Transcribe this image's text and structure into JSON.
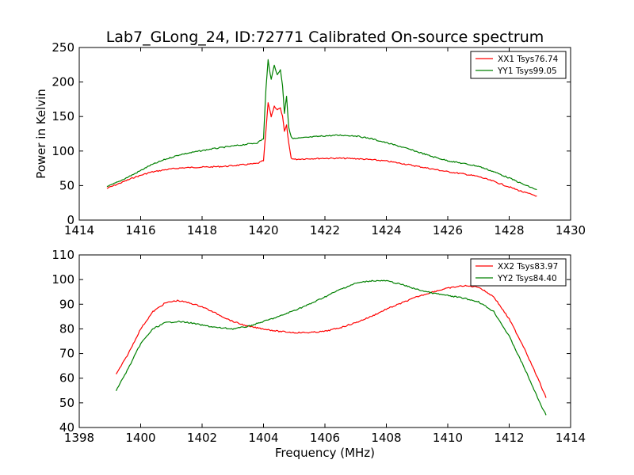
{
  "figure": {
    "title": "Lab7_GLong_24, ID:72771 Calibrated On-source spectrum",
    "xlabel": "Frequency (MHz)"
  },
  "chart_data": [
    {
      "type": "line",
      "title": "Lab7_GLong_24, ID:72771 Calibrated On-source spectrum",
      "xlabel": "",
      "ylabel": "Power in Kelvin",
      "xlim": [
        1414,
        1430
      ],
      "ylim": [
        0,
        250
      ],
      "xticks": [
        1414,
        1416,
        1418,
        1420,
        1422,
        1424,
        1426,
        1428,
        1430
      ],
      "yticks": [
        0,
        50,
        100,
        150,
        200,
        250
      ],
      "grid": false,
      "legend": "top-right",
      "series": [
        {
          "name": "XX1 Tsys76.74",
          "color": "#ff0000",
          "x": [
            1414.9,
            1415.3,
            1415.8,
            1416.3,
            1416.8,
            1417.3,
            1417.8,
            1418.3,
            1418.8,
            1419.3,
            1419.8,
            1420.0,
            1420.08,
            1420.15,
            1420.25,
            1420.35,
            1420.45,
            1420.55,
            1420.62,
            1420.68,
            1420.75,
            1420.82,
            1420.9,
            1421.0,
            1421.5,
            1422.0,
            1422.5,
            1423.0,
            1423.5,
            1424.0,
            1424.5,
            1425.0,
            1425.5,
            1426.0,
            1426.5,
            1427.0,
            1427.5,
            1428.0,
            1428.5,
            1428.9
          ],
          "y": [
            46,
            53,
            62,
            69,
            73,
            75.5,
            76.5,
            77,
            78,
            80,
            82,
            86,
            130,
            170,
            150,
            165,
            160,
            162,
            150,
            128,
            137,
            112,
            90,
            88,
            89,
            89.5,
            89.5,
            89,
            87.5,
            85.5,
            82,
            78,
            74,
            70,
            67,
            63,
            56,
            48,
            40,
            35
          ]
        },
        {
          "name": "YY1 Tsys99.05",
          "color": "#008000",
          "x": [
            1414.9,
            1415.3,
            1415.8,
            1416.3,
            1416.8,
            1417.3,
            1417.8,
            1418.3,
            1418.8,
            1419.3,
            1419.8,
            1420.0,
            1420.08,
            1420.15,
            1420.25,
            1420.35,
            1420.45,
            1420.55,
            1420.62,
            1420.68,
            1420.75,
            1420.82,
            1420.9,
            1421.0,
            1421.5,
            1422.0,
            1422.5,
            1423.0,
            1423.5,
            1424.0,
            1424.5,
            1425.0,
            1425.5,
            1426.0,
            1426.5,
            1427.0,
            1427.5,
            1428.0,
            1428.5,
            1428.9
          ],
          "y": [
            48,
            56,
            67,
            79,
            88,
            95,
            99,
            103,
            106,
            109,
            112,
            118,
            190,
            232,
            203,
            225,
            210,
            218,
            195,
            155,
            180,
            135,
            120,
            118,
            120,
            122,
            123,
            122,
            118,
            112,
            106,
            99,
            92,
            86,
            82,
            78,
            70,
            61,
            51,
            44
          ]
        }
      ]
    },
    {
      "type": "line",
      "title": "",
      "xlabel": "Frequency (MHz)",
      "ylabel": "",
      "xlim": [
        1398,
        1414
      ],
      "ylim": [
        40,
        110
      ],
      "xticks": [
        1398,
        1400,
        1402,
        1404,
        1406,
        1408,
        1410,
        1412,
        1414
      ],
      "yticks": [
        40,
        50,
        60,
        70,
        80,
        90,
        100,
        110
      ],
      "grid": false,
      "legend": "top-right",
      "series": [
        {
          "name": "XX2 Tsys83.97",
          "color": "#ff0000",
          "x": [
            1399.2,
            1399.6,
            1400.0,
            1400.4,
            1400.8,
            1401.2,
            1401.6,
            1402.0,
            1402.5,
            1403.0,
            1403.5,
            1404.0,
            1404.5,
            1405.0,
            1405.5,
            1406.0,
            1406.5,
            1407.0,
            1407.5,
            1408.0,
            1408.5,
            1409.0,
            1409.5,
            1410.0,
            1410.5,
            1411.0,
            1411.5,
            1412.0,
            1412.5,
            1413.0,
            1413.2
          ],
          "y": [
            61.5,
            70,
            80,
            87,
            90.5,
            91.5,
            90.5,
            89,
            86,
            83,
            81,
            80,
            79,
            78.5,
            78.5,
            79,
            80.5,
            82.5,
            85,
            88,
            90.5,
            93,
            95,
            96.5,
            97.5,
            97,
            93,
            84,
            72,
            58,
            52
          ]
        },
        {
          "name": "YY2 Tsys84.40",
          "color": "#008000",
          "x": [
            1399.2,
            1399.6,
            1400.0,
            1400.4,
            1400.8,
            1401.2,
            1401.6,
            1402.0,
            1402.5,
            1403.0,
            1403.5,
            1404.0,
            1404.5,
            1405.0,
            1405.5,
            1406.0,
            1406.5,
            1407.0,
            1407.5,
            1408.0,
            1408.5,
            1409.0,
            1409.5,
            1410.0,
            1410.5,
            1411.0,
            1411.5,
            1412.0,
            1412.5,
            1413.0,
            1413.2
          ],
          "y": [
            55,
            64,
            74,
            80,
            82.5,
            83,
            82.5,
            81.5,
            80.5,
            80,
            81,
            83,
            85,
            87.5,
            90,
            93,
            96,
            98.5,
            99.5,
            99.5,
            98,
            96,
            94.5,
            93.5,
            92.5,
            91,
            87,
            77,
            64,
            50,
            45
          ]
        }
      ]
    }
  ]
}
